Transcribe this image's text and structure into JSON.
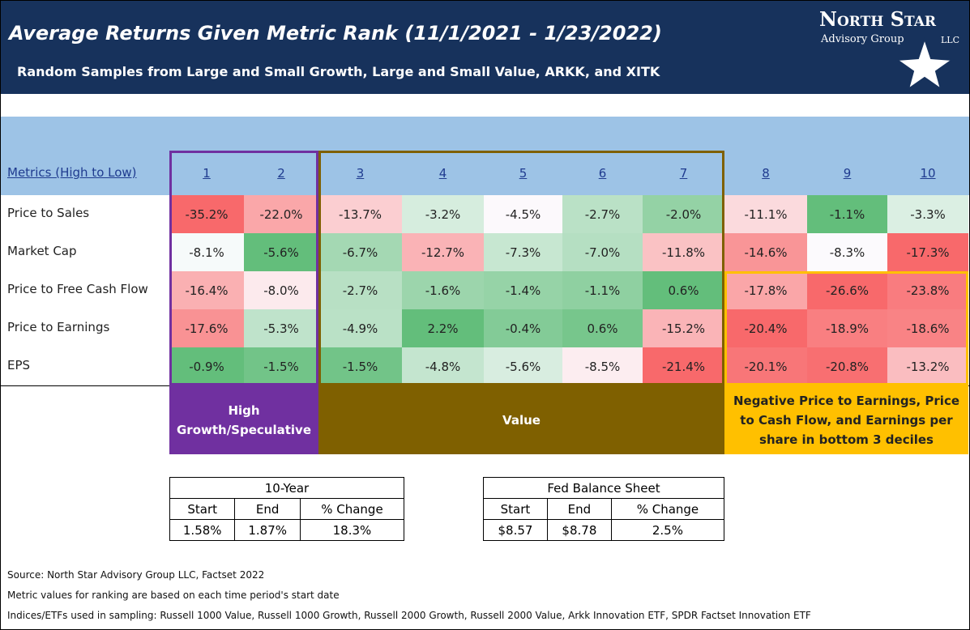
{
  "header": {
    "title": "Average Returns Given Metric Rank (11/1/2021 - 1/23/2022)",
    "subtitle": "Random Samples from Large and Small Growth, Large and Small Value, ARKK, and XITK",
    "logo": {
      "name": "North Star",
      "line2": "Advisory Group",
      "line3": "LLC"
    }
  },
  "table": {
    "header_label": "Metrics (High to Low)",
    "columns": [
      "1",
      "2",
      "3",
      "4",
      "5",
      "6",
      "7",
      "8",
      "9",
      "10"
    ],
    "rows": [
      {
        "label": "Price to Sales",
        "values": [
          "-35.2%",
          "-22.0%",
          "-13.7%",
          "-3.2%",
          "-4.5%",
          "-2.7%",
          "-2.0%",
          "-11.1%",
          "-1.1%",
          "-3.3%"
        ]
      },
      {
        "label": "Market Cap",
        "values": [
          "-8.1%",
          "-5.6%",
          "-6.7%",
          "-12.7%",
          "-7.3%",
          "-7.0%",
          "-11.8%",
          "-14.6%",
          "-8.3%",
          "-17.3%"
        ]
      },
      {
        "label": "Price to Free Cash Flow",
        "values": [
          "-16.4%",
          "-8.0%",
          "-2.7%",
          "-1.6%",
          "-1.4%",
          "-1.1%",
          "0.6%",
          "-17.8%",
          "-26.6%",
          "-23.8%"
        ]
      },
      {
        "label": "Price to Earnings",
        "values": [
          "-17.6%",
          "-5.3%",
          "-4.9%",
          "2.2%",
          "-0.4%",
          "0.6%",
          "-15.2%",
          "-20.4%",
          "-18.9%",
          "-18.6%"
        ]
      },
      {
        "label": "EPS",
        "values": [
          "-0.9%",
          "-1.5%",
          "-1.5%",
          "-4.8%",
          "-5.6%",
          "-8.5%",
          "-21.4%",
          "-20.1%",
          "-20.8%",
          "-13.2%"
        ]
      }
    ]
  },
  "groups": [
    {
      "label": "High Growth/Speculative",
      "color": "#7030a0"
    },
    {
      "label": "Value",
      "color": "#7f6000"
    },
    {
      "label": "Negative Price to Earnings, Price to Cash Flow, and Earnings per share in bottom 3 deciles",
      "color": "#ffc000"
    }
  ],
  "ten_year": {
    "title": "10-Year",
    "columns": [
      "Start",
      "End",
      "% Change"
    ],
    "values": [
      "1.58%",
      "1.87%",
      "18.3%"
    ]
  },
  "fed": {
    "title": "Fed Balance Sheet",
    "columns": [
      "Start",
      "End",
      "% Change"
    ],
    "values": [
      "$8.57",
      "$8.78",
      "2.5%"
    ]
  },
  "footnotes": [
    "Source: North Star Advisory Group LLC, Factset 2022",
    "Metric values for ranking are based on each time period's start date",
    "Indices/ETFs used in sampling: Russell 1000 Value, Russell 1000 Growth, Russell 2000 Growth, Russell 2000 Value, Arkk Innovation ETF, SPDR Factset Innovation ETF"
  ]
}
